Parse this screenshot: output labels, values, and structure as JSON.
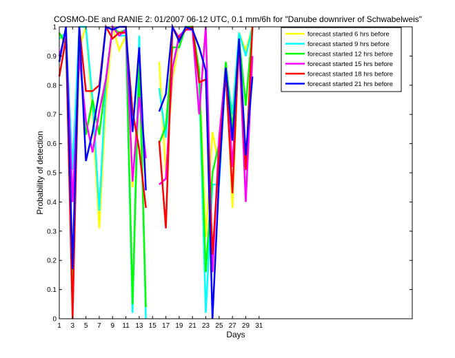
{
  "chart_data": {
    "type": "line",
    "title": "COSMO-DE and RANIE 2: 01/2007 06-12 UTC, 0.1 mm/6h for \"Danube downriver of Schwabelweis\"",
    "xlabel": "Days",
    "ylabel": "Probability of detection",
    "xlim": [
      1,
      54
    ],
    "ylim": [
      0,
      1
    ],
    "x_ticks": [
      1,
      3,
      5,
      7,
      9,
      11,
      13,
      15,
      17,
      19,
      21,
      23,
      25,
      27,
      29,
      31
    ],
    "y_ticks": [
      0,
      0.1,
      0.2,
      0.3,
      0.4,
      0.5,
      0.6,
      0.7,
      0.8,
      0.9,
      1
    ],
    "grid": false,
    "legend_position": "top-right",
    "x": [
      1,
      2,
      3,
      4,
      5,
      6,
      7,
      8,
      9,
      10,
      11,
      12,
      13,
      14,
      15,
      16,
      17,
      18,
      19,
      20,
      21,
      22,
      23,
      24,
      25,
      26,
      27,
      28,
      29,
      30
    ],
    "series": [
      {
        "name": "forecast started 6 hrs before",
        "color": "#ffff00",
        "values": [
          0.98,
          0.93,
          0.08,
          0.93,
          1.0,
          0.7,
          0.31,
          0.74,
          1.0,
          0.92,
          0.97,
          0.45,
          0.82,
          0.45,
          null,
          0.88,
          0.5,
          0.82,
          0.95,
          1.0,
          1.0,
          0.85,
          0.28,
          0.64,
          0.52,
          0.88,
          0.38,
          0.98,
          0.92,
          1.0
        ]
      },
      {
        "name": "forecast started 9 hrs before",
        "color": "#00ffff",
        "values": [
          0.96,
          0.98,
          0.51,
          1.0,
          1.0,
          0.75,
          0.37,
          0.81,
          1.0,
          0.97,
          0.97,
          0.02,
          0.97,
          0.0,
          null,
          0.79,
          0.62,
          0.86,
          0.96,
          1.0,
          1.0,
          0.82,
          0.02,
          0.46,
          0.46,
          0.86,
          0.7,
          0.98,
          0.9,
          1.0
        ]
      },
      {
        "name": "forecast started 12 hrs before",
        "color": "#00ff00",
        "values": [
          0.98,
          0.94,
          0.12,
          0.93,
          0.63,
          0.75,
          0.63,
          0.82,
          1.0,
          0.98,
          0.99,
          0.05,
          0.88,
          0.04,
          null,
          0.6,
          0.66,
          0.93,
          0.93,
          1.0,
          1.0,
          0.85,
          0.16,
          0.5,
          0.6,
          0.88,
          0.65,
          0.96,
          0.73,
          1.0
        ]
      },
      {
        "name": "forecast started 15 hrs before",
        "color": "#ff00ff",
        "values": [
          0.9,
          0.98,
          0.4,
          0.9,
          0.68,
          0.57,
          0.71,
          0.82,
          1.0,
          0.97,
          0.99,
          0.47,
          0.76,
          0.55,
          null,
          0.46,
          0.48,
          0.86,
          0.97,
          0.99,
          0.99,
          0.7,
          1.0,
          0.16,
          0.62,
          0.86,
          0.52,
          0.94,
          0.4,
          0.9
        ]
      },
      {
        "name": "forecast started 18 hrs before",
        "color": "#ff0000",
        "values": [
          0.83,
          0.96,
          0.0,
          1.0,
          0.78,
          0.78,
          0.8,
          1.0,
          0.96,
          0.98,
          0.98,
          0.71,
          0.58,
          0.38,
          null,
          0.61,
          0.31,
          1.0,
          0.96,
          0.99,
          1.0,
          0.81,
          0.82,
          0.22,
          0.56,
          0.84,
          0.43,
          0.96,
          0.51,
          1.0
        ]
      },
      {
        "name": "forecast started 21 hrs before",
        "color": "#0000ff",
        "values": [
          0.88,
          1.0,
          0.17,
          1.0,
          0.54,
          0.64,
          0.78,
          1.0,
          0.99,
          1.0,
          1.0,
          0.64,
          0.93,
          0.44,
          null,
          0.71,
          0.77,
          1.0,
          0.95,
          1.0,
          0.99,
          0.93,
          0.85,
          0.0,
          0.48,
          0.86,
          0.61,
          0.96,
          0.56,
          0.83
        ]
      }
    ]
  }
}
